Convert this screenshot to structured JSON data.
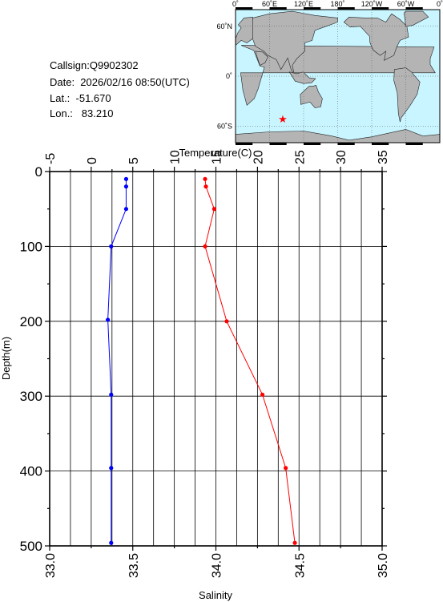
{
  "station": {
    "callsign": "Callsign:Q9902302",
    "date": "Date:  2026/02/16 08:50(UTC)",
    "lat": "Lat.:  -51.670",
    "lon": "Lon.:   83.210"
  },
  "map": {
    "lon_labels": [
      "0˚",
      "60˚E",
      "120˚E",
      "180˚",
      "120˚W",
      "60˚W",
      "0˚"
    ],
    "lat_labels": [
      "60˚N",
      "0˚",
      "60˚S"
    ],
    "marker": {
      "lat": -51.67,
      "lon": 83.21,
      "color": "#ff0000"
    },
    "ocean_color": "#c8f5ff",
    "land_color": "#b4b4b4"
  },
  "chart_data": {
    "type": "line",
    "ylabel": "Depth(m)",
    "ylim": [
      0,
      500
    ],
    "y_inverted": true,
    "yticks": [
      "0",
      "100",
      "200",
      "300",
      "400",
      "500"
    ],
    "temperature_axis": {
      "label": "Temperature(C)",
      "lim": [
        -5,
        35
      ],
      "ticks": [
        "-5",
        "0",
        "5",
        "10",
        "15",
        "20",
        "25",
        "30",
        "35"
      ],
      "position": "top"
    },
    "salinity_axis": {
      "label": "Salinity",
      "lim": [
        33.0,
        35.0
      ],
      "ticks": [
        "33.0",
        "33.5",
        "34.0",
        "34.5",
        "35.0"
      ],
      "position": "bottom"
    },
    "grid": true,
    "series": [
      {
        "axis": "temperature",
        "color": "#ff0000",
        "points": [
          [
            13.7,
            10
          ],
          [
            13.8,
            20
          ],
          [
            14.8,
            50
          ],
          [
            13.7,
            100
          ],
          [
            16.3,
            200
          ],
          [
            20.6,
            298
          ],
          [
            23.4,
            396
          ],
          [
            24.5,
            496
          ]
        ]
      },
      {
        "axis": "salinity",
        "color": "#0000ff",
        "points": [
          [
            33.46,
            10
          ],
          [
            33.46,
            20
          ],
          [
            33.46,
            50
          ],
          [
            33.37,
            100
          ],
          [
            33.35,
            198
          ],
          [
            33.37,
            298
          ],
          [
            33.37,
            396
          ],
          [
            33.37,
            496
          ]
        ]
      }
    ]
  }
}
